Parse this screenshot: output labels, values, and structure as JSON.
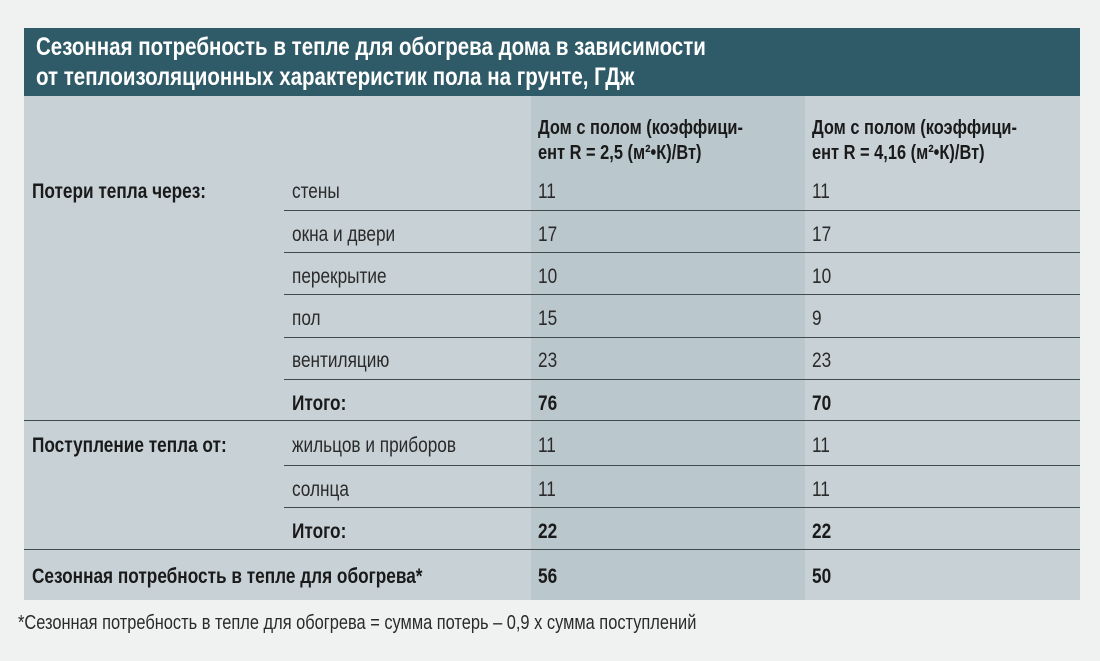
{
  "title": {
    "line1": "Сезонная потребность в тепле для обогрева дома в зависимости",
    "line2": "от теплоизоляционных характеристик пола на грунте, ГДж"
  },
  "columns": [
    {
      "line1": "Дом с полом (коэффици-",
      "line2": "ент R = 2,5 (м²•К)/Вт)"
    },
    {
      "line1": "Дом с полом (коэффици-",
      "line2": "ент R = 4,16 (м²•К)/Вт)"
    }
  ],
  "sections": {
    "losses": "Потери тепла через:",
    "gains": "Поступление тепла от:",
    "seasonal": "Сезонная потребность в тепле для обогрева*"
  },
  "rows": [
    {
      "label": "стены",
      "v1": "11",
      "v2": "11"
    },
    {
      "label": "окна и двери",
      "v1": "17",
      "v2": "17"
    },
    {
      "label": "перекрытие",
      "v1": "10",
      "v2": "10"
    },
    {
      "label": "пол",
      "v1": "15",
      "v2": "9"
    },
    {
      "label": "вентиляцию",
      "v1": "23",
      "v2": "23"
    },
    {
      "label": "Итого:",
      "v1": "76",
      "v2": "70"
    },
    {
      "label": "жильцов и приборов",
      "v1": "11",
      "v2": "11"
    },
    {
      "label": "солнца",
      "v1": "11",
      "v2": "11"
    },
    {
      "label": "Итого:",
      "v1": "22",
      "v2": "22"
    },
    {
      "label": "",
      "v1": "56",
      "v2": "50"
    }
  ],
  "footnote": "*Сезонная потребность в тепле для обогрева = сумма потерь – 0,9 х сумма поступлений"
}
